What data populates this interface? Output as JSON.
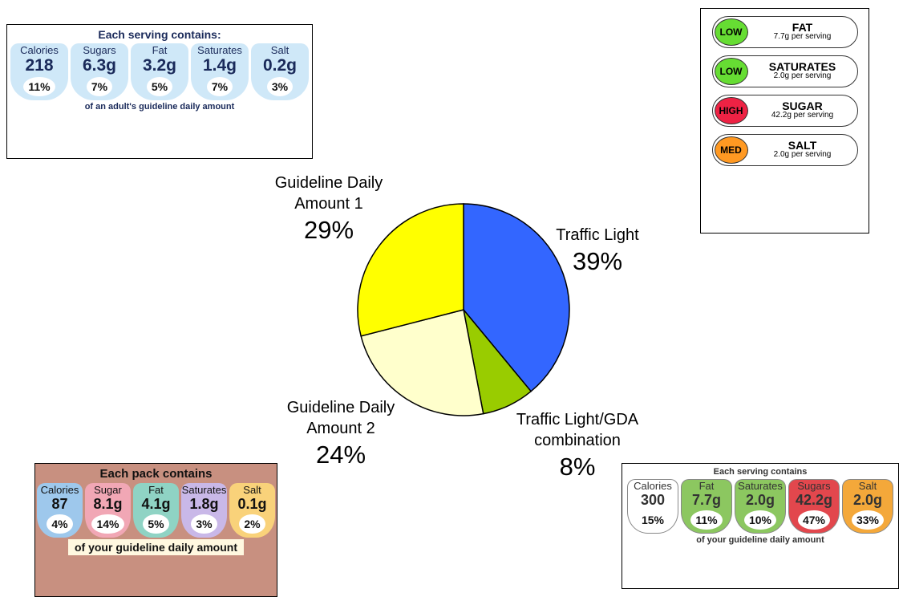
{
  "chart_data": {
    "type": "pie",
    "categories": [
      "Traffic Light",
      "Traffic Light/GDA combination",
      "Guideline Daily Amount 2",
      "Guideline Daily Amount 1"
    ],
    "values": [
      39,
      8,
      24,
      29
    ],
    "value_labels": [
      "39%",
      "8%",
      "24%",
      "29%"
    ],
    "colors": [
      "#3366ff",
      "#99cc00",
      "#ffffcc",
      "#ffff00"
    ]
  },
  "panels": [
    {
      "title": "Each serving contains:",
      "items": [
        {
          "name": "Calories",
          "amount": "218",
          "percent": "11%"
        },
        {
          "name": "Sugars",
          "amount": "6.3g",
          "percent": "7%"
        },
        {
          "name": "Fat",
          "amount": "3.2g",
          "percent": "5%"
        },
        {
          "name": "Saturates",
          "amount": "1.4g",
          "percent": "7%"
        },
        {
          "name": "Salt",
          "amount": "0.2g",
          "percent": "3%"
        }
      ],
      "footer": "of an adult's guideline daily amount"
    },
    {
      "title": "Each pack contains",
      "items": [
        {
          "name": "Calories",
          "amount": "87",
          "percent": "4%"
        },
        {
          "name": "Sugar",
          "amount": "8.1g",
          "percent": "14%"
        },
        {
          "name": "Fat",
          "amount": "4.1g",
          "percent": "5%"
        },
        {
          "name": "Saturates",
          "amount": "1.8g",
          "percent": "3%"
        },
        {
          "name": "Salt",
          "amount": "0.1g",
          "percent": "2%"
        }
      ],
      "footer": "of your guideline daily amount"
    },
    {
      "title": "Each serving contains",
      "items": [
        {
          "name": "Calories",
          "amount": "300",
          "percent": "15%"
        },
        {
          "name": "Fat",
          "amount": "7.7g",
          "percent": "11%"
        },
        {
          "name": "Saturates",
          "amount": "2.0g",
          "percent": "10%"
        },
        {
          "name": "Sugars",
          "amount": "42.2g",
          "percent": "47%"
        },
        {
          "name": "Salt",
          "amount": "2.0g",
          "percent": "33%"
        }
      ],
      "footer": "of your guideline daily amount"
    }
  ],
  "traffic_panel": [
    {
      "level": "LOW",
      "nutrient": "FAT",
      "amount": "7.7g per serving"
    },
    {
      "level": "LOW",
      "nutrient": "SATURATES",
      "amount": "2.0g per serving"
    },
    {
      "level": "HIGH",
      "nutrient": "SUGAR",
      "amount": "42.2g per serving"
    },
    {
      "level": "MED",
      "nutrient": "SALT",
      "amount": "2.0g per serving"
    }
  ]
}
